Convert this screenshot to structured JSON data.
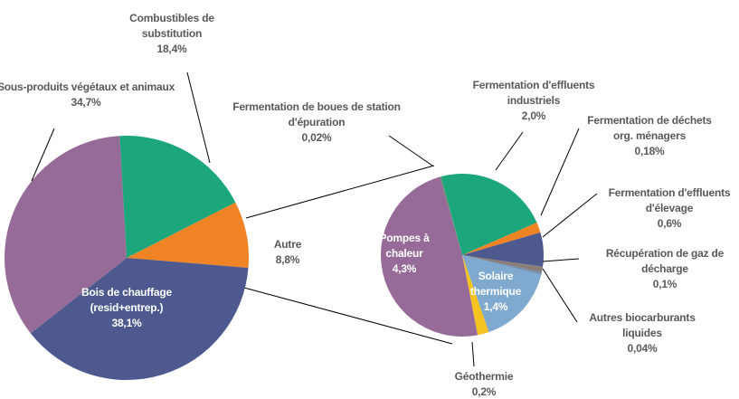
{
  "chart_data": [
    {
      "type": "pie",
      "categories": [
        "Autre",
        "Bois de chauffage (resid+entrep.)",
        "Sous-produits végétaux et animaux",
        "Combustibles de substitution"
      ],
      "values": [
        8.8,
        38.1,
        34.7,
        18.4
      ],
      "value_labels": [
        "8,8%",
        "38,1%",
        "34,7%",
        "18,4%"
      ],
      "colors": [
        "#f08424",
        "#4e5a8f",
        "#976b98",
        "#1ba67b"
      ]
    },
    {
      "type": "pie",
      "categories": [
        "Fermentation d'effluents industriels",
        "Fermentation de déchets org. ménagers",
        "Fermentation d'effluents d'élevage",
        "Récupération de gaz de décharge",
        "Autres biocarburants liquides",
        "Solaire thermique",
        "Géothermie",
        "Pompes à chaleur",
        "Fermentation de boues de station d'épuration"
      ],
      "values": [
        2.0,
        0.18,
        0.6,
        0.1,
        0.04,
        1.4,
        0.2,
        4.3,
        0.02
      ],
      "value_labels": [
        "2,0%",
        "0,18%",
        "0,6%",
        "0,1%",
        "0,04%",
        "1,4%",
        "0,2%",
        "4,3%",
        "0,02%"
      ],
      "colors": [
        "#1ba67b",
        "#f08424",
        "#4e5a8f",
        "#8a7f78",
        "#6f8fb5",
        "#7fa9cf",
        "#f6c321",
        "#976b98",
        "#5a8f6a"
      ]
    }
  ]
}
